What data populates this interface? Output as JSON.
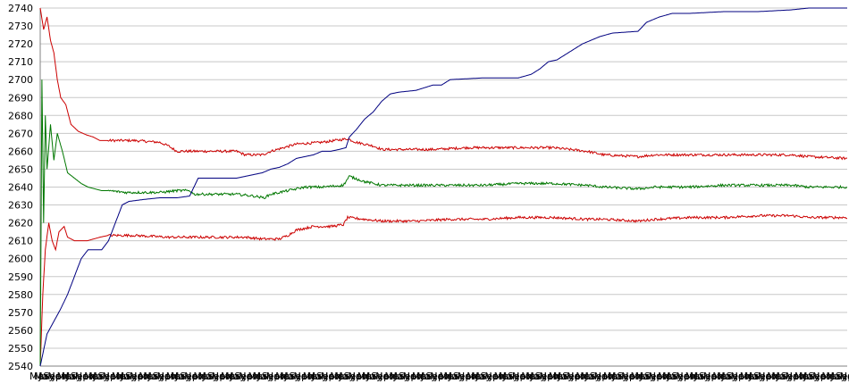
{
  "chart_data": {
    "type": "line",
    "title": "",
    "xlabel": "",
    "ylabel": "",
    "ylim": [
      2540,
      2740
    ],
    "yticks": [
      2540,
      2550,
      2560,
      2570,
      2580,
      2590,
      2600,
      2610,
      2620,
      2630,
      2640,
      2650,
      2660,
      2670,
      2680,
      2690,
      2700,
      2710,
      2720,
      2730,
      2740
    ],
    "grid": true,
    "x_tick_labels": [
      "Mar",
      "May",
      "Jul",
      "Sep",
      "Nov",
      "Jan",
      "Mar",
      "May",
      "Jul",
      "Sep",
      "Nov",
      "Jan",
      "Mar",
      "May",
      "Jul",
      "Sep",
      "Nov",
      "Jan",
      "Mar",
      "May",
      "Jul",
      "Sep",
      "Nov",
      "Jan",
      "Mar",
      "May",
      "Jul",
      "Sep",
      "Nov",
      "Jan",
      "Mar",
      "May",
      "Jul",
      "Sep",
      "Nov",
      "Jan",
      "Mar",
      "May",
      "Jul",
      "Sep",
      "Nov",
      "Jan",
      "Mar",
      "May",
      "Jul",
      "Sep",
      "Nov",
      "Jan",
      "Mar",
      "May",
      "Jul",
      "Sep",
      "Nov",
      "Jan",
      "Mar",
      "May",
      "Jul",
      "Sep",
      "Nov",
      "Jan",
      "Mar",
      "May",
      "Jul",
      "Sep",
      "Nov",
      "Jan",
      "Mar",
      "May",
      "Jul",
      "Sep",
      "Nov",
      "Jan",
      "Mar",
      "May",
      "Jul",
      "Sep",
      "Nov",
      "Jan",
      "Mar",
      "May",
      "Jul",
      "Sep",
      "Nov",
      "Jan",
      "Mar",
      "May",
      "Jul",
      "Sep",
      "Nov",
      "Jan",
      "Mar",
      "May",
      "Jul",
      "Sep",
      "Nov",
      "Jan",
      "Mar",
      "May",
      "Jul",
      "Sep",
      "Nov",
      "Jan",
      "Mar",
      "May",
      "Jul",
      "Sep",
      "Nov",
      "Jan",
      "Mar",
      "May",
      "Jul",
      "Sep",
      "Nov",
      "Jan",
      "Mar",
      "May",
      "Jul",
      "Sep",
      "Nov",
      "Jan",
      "Mar",
      "May",
      "Jul",
      "Sep",
      "Nov",
      "Jan",
      "Mar",
      "May",
      "Jul",
      "Sep",
      "Nov",
      "Jan",
      "Mar",
      "May",
      "Jul",
      "Sep",
      "Nov",
      "Jan",
      "Mar",
      "May",
      "Jul",
      "Sep",
      "Nov",
      "Jan",
      "Mar",
      "May",
      "Jul",
      "Sep",
      "Nov",
      "Jan",
      "Mar",
      "May",
      "Jul",
      "Sep",
      "Nov",
      "Jan",
      "Mar",
      "May",
      "Jul",
      "Sep",
      "Nov",
      "Jan",
      "Mar",
      "May",
      "Jul",
      "Sep",
      "Nov",
      "Jan",
      "Mar",
      "May",
      "Jul",
      "Sep",
      "Nov",
      "Jan",
      "Mar",
      "May",
      "Jul",
      "Sep",
      "Nov",
      "Jan"
    ],
    "x_count": 945,
    "series": [
      {
        "color": "#cc0000",
        "points": [
          [
            0,
            2740
          ],
          [
            4,
            2728
          ],
          [
            8,
            2735
          ],
          [
            12,
            2722
          ],
          [
            16,
            2715
          ],
          [
            20,
            2700
          ],
          [
            24,
            2690
          ],
          [
            30,
            2686
          ],
          [
            36,
            2675
          ],
          [
            45,
            2671
          ],
          [
            55,
            2669
          ],
          [
            62,
            2668
          ],
          [
            70,
            2666
          ],
          [
            110,
            2666
          ],
          [
            140,
            2665
          ],
          [
            150,
            2663
          ],
          [
            160,
            2660
          ],
          [
            190,
            2660
          ],
          [
            230,
            2660
          ],
          [
            240,
            2658
          ],
          [
            260,
            2658
          ],
          [
            270,
            2660
          ],
          [
            300,
            2664
          ],
          [
            330,
            2665
          ],
          [
            360,
            2667
          ],
          [
            370,
            2665
          ],
          [
            390,
            2663
          ],
          [
            400,
            2661
          ],
          [
            420,
            2661
          ],
          [
            460,
            2661
          ],
          [
            500,
            2662
          ],
          [
            550,
            2662
          ],
          [
            600,
            2662
          ],
          [
            640,
            2660
          ],
          [
            660,
            2658
          ],
          [
            700,
            2657
          ],
          [
            720,
            2658
          ],
          [
            750,
            2658
          ],
          [
            800,
            2658
          ],
          [
            840,
            2658
          ],
          [
            880,
            2658
          ],
          [
            900,
            2657
          ],
          [
            945,
            2656
          ]
        ]
      },
      {
        "color": "#cc0000",
        "points": [
          [
            0,
            2540
          ],
          [
            3,
            2580
          ],
          [
            6,
            2605
          ],
          [
            10,
            2620
          ],
          [
            14,
            2610
          ],
          [
            18,
            2605
          ],
          [
            22,
            2615
          ],
          [
            28,
            2618
          ],
          [
            32,
            2612
          ],
          [
            40,
            2610
          ],
          [
            55,
            2610
          ],
          [
            70,
            2612
          ],
          [
            80,
            2613
          ],
          [
            110,
            2613
          ],
          [
            150,
            2612
          ],
          [
            180,
            2612
          ],
          [
            210,
            2612
          ],
          [
            240,
            2612
          ],
          [
            260,
            2611
          ],
          [
            280,
            2611
          ],
          [
            290,
            2613
          ],
          [
            300,
            2616
          ],
          [
            320,
            2618
          ],
          [
            340,
            2618
          ],
          [
            355,
            2619
          ],
          [
            360,
            2623
          ],
          [
            380,
            2622
          ],
          [
            400,
            2621
          ],
          [
            440,
            2621
          ],
          [
            480,
            2622
          ],
          [
            520,
            2622
          ],
          [
            560,
            2623
          ],
          [
            600,
            2623
          ],
          [
            640,
            2622
          ],
          [
            660,
            2622
          ],
          [
            700,
            2621
          ],
          [
            720,
            2622
          ],
          [
            760,
            2623
          ],
          [
            800,
            2623
          ],
          [
            840,
            2624
          ],
          [
            880,
            2624
          ],
          [
            900,
            2623
          ],
          [
            945,
            2623
          ]
        ]
      },
      {
        "color": "#007700",
        "points": [
          [
            0,
            2540
          ],
          [
            2,
            2700
          ],
          [
            4,
            2620
          ],
          [
            6,
            2680
          ],
          [
            8,
            2650
          ],
          [
            12,
            2675
          ],
          [
            16,
            2655
          ],
          [
            20,
            2670
          ],
          [
            26,
            2660
          ],
          [
            32,
            2648
          ],
          [
            40,
            2645
          ],
          [
            48,
            2642
          ],
          [
            56,
            2640
          ],
          [
            64,
            2639
          ],
          [
            72,
            2638
          ],
          [
            80,
            2638
          ],
          [
            100,
            2637
          ],
          [
            140,
            2637
          ],
          [
            160,
            2638
          ],
          [
            175,
            2638
          ],
          [
            180,
            2636
          ],
          [
            200,
            2636
          ],
          [
            230,
            2636
          ],
          [
            250,
            2635
          ],
          [
            262,
            2634
          ],
          [
            270,
            2636
          ],
          [
            290,
            2638
          ],
          [
            310,
            2640
          ],
          [
            330,
            2640
          ],
          [
            355,
            2641
          ],
          [
            362,
            2646
          ],
          [
            380,
            2643
          ],
          [
            400,
            2641
          ],
          [
            440,
            2641
          ],
          [
            480,
            2641
          ],
          [
            520,
            2641
          ],
          [
            560,
            2642
          ],
          [
            600,
            2642
          ],
          [
            640,
            2641
          ],
          [
            660,
            2640
          ],
          [
            700,
            2639
          ],
          [
            720,
            2640
          ],
          [
            760,
            2640
          ],
          [
            800,
            2641
          ],
          [
            840,
            2641
          ],
          [
            880,
            2641
          ],
          [
            900,
            2640
          ],
          [
            945,
            2640
          ]
        ]
      },
      {
        "color": "#000080",
        "points": [
          [
            0,
            2540
          ],
          [
            8,
            2558
          ],
          [
            16,
            2565
          ],
          [
            24,
            2572
          ],
          [
            32,
            2580
          ],
          [
            40,
            2590
          ],
          [
            48,
            2600
          ],
          [
            56,
            2605
          ],
          [
            64,
            2605
          ],
          [
            72,
            2605
          ],
          [
            80,
            2610
          ],
          [
            88,
            2620
          ],
          [
            96,
            2630
          ],
          [
            104,
            2632
          ],
          [
            120,
            2633
          ],
          [
            140,
            2634
          ],
          [
            160,
            2634
          ],
          [
            175,
            2635
          ],
          [
            185,
            2645
          ],
          [
            200,
            2645
          ],
          [
            230,
            2645
          ],
          [
            240,
            2646
          ],
          [
            250,
            2647
          ],
          [
            260,
            2648
          ],
          [
            270,
            2650
          ],
          [
            280,
            2651
          ],
          [
            290,
            2653
          ],
          [
            300,
            2656
          ],
          [
            310,
            2657
          ],
          [
            320,
            2658
          ],
          [
            330,
            2660
          ],
          [
            340,
            2660
          ],
          [
            350,
            2661
          ],
          [
            358,
            2662
          ],
          [
            362,
            2668
          ],
          [
            370,
            2672
          ],
          [
            380,
            2678
          ],
          [
            390,
            2682
          ],
          [
            400,
            2688
          ],
          [
            410,
            2692
          ],
          [
            420,
            2693
          ],
          [
            440,
            2694
          ],
          [
            460,
            2697
          ],
          [
            470,
            2697
          ],
          [
            480,
            2700
          ],
          [
            520,
            2701
          ],
          [
            560,
            2701
          ],
          [
            575,
            2703
          ],
          [
            585,
            2706
          ],
          [
            595,
            2710
          ],
          [
            605,
            2711
          ],
          [
            615,
            2714
          ],
          [
            625,
            2717
          ],
          [
            635,
            2720
          ],
          [
            645,
            2722
          ],
          [
            655,
            2724
          ],
          [
            670,
            2726
          ],
          [
            700,
            2727
          ],
          [
            710,
            2732
          ],
          [
            725,
            2735
          ],
          [
            740,
            2737
          ],
          [
            760,
            2737
          ],
          [
            800,
            2738
          ],
          [
            840,
            2738
          ],
          [
            880,
            2739
          ],
          [
            900,
            2740
          ],
          [
            945,
            2740
          ]
        ]
      }
    ]
  }
}
